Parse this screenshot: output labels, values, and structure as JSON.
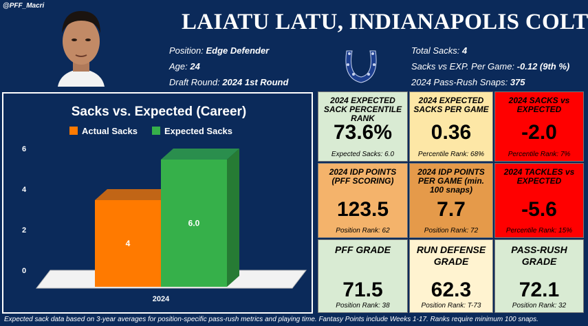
{
  "header": {
    "handle": "@PFF_Macri",
    "title": "LAIATU LATU, INDIANAPOLIS COLTS",
    "position_label": "Position:",
    "position_value": "Edge Defender",
    "age_label": "Age:",
    "age_value": "24",
    "draft_label": "Draft Round:",
    "draft_value": "2024 1st Round",
    "sacks_label": "Total Sacks:",
    "sacks_value": "4",
    "sacks_exp_label": "Sacks vs EXP. Per Game:",
    "sacks_exp_value": "-0.12 (9th %)",
    "snaps_label": "2024 Pass-Rush Snaps:",
    "snaps_value": "375"
  },
  "colors": {
    "background": "#0b2a5a",
    "actual": "#ff7a00",
    "expected": "#36b04a",
    "green_tile": "#d9ebd3",
    "yellow_tile": "#fde7a6",
    "orange_tile": "#f4b36b",
    "dark_orange_tile": "#e59a4a",
    "red_tile": "#ff0000",
    "cream_tile": "#fff3d0"
  },
  "chart_data": {
    "type": "bar",
    "title": "Sacks vs. Expected (Career)",
    "categories": [
      "2024"
    ],
    "series": [
      {
        "name": "Actual Sacks",
        "values": [
          4
        ],
        "data_labels": [
          "4"
        ]
      },
      {
        "name": "Expected Sacks",
        "values": [
          6.0
        ],
        "data_labels": [
          "6.0"
        ]
      }
    ],
    "yticks": [
      "0",
      "2",
      "4",
      "6"
    ],
    "ylim": [
      0,
      6
    ],
    "legend": "top"
  },
  "tiles": [
    {
      "label": "2024 EXPECTED SACK PERCENTILE RANK",
      "value": "73.6%",
      "sub": "Expected Sacks: 6.0",
      "color": "#d9ebd3"
    },
    {
      "label": "2024 EXPECTED SACKS PER GAME",
      "value": "0.36",
      "sub": "Percentile Rank: 68%",
      "color": "#fde7a6"
    },
    {
      "label": "2024 SACKS vs EXPECTED",
      "value": "-2.0",
      "sub": "Percentile Rank: 7%",
      "color": "#ff0000"
    },
    {
      "label": "2024 IDP POINTS (PFF SCORING)",
      "value": "123.5",
      "sub": "Position Rank: 62",
      "color": "#f4b36b"
    },
    {
      "label": "2024 IDP POINTS PER GAME (min. 100 snaps)",
      "value": "7.7",
      "sub": "Position Rank: 72",
      "color": "#e59a4a"
    },
    {
      "label": "2024 TACKLES vs EXPECTED",
      "value": "-5.6",
      "sub": "Percentile Rank: 15%",
      "color": "#ff0000"
    },
    {
      "label": "PFF GRADE",
      "value": "71.5",
      "sub": "Position Rank: 38",
      "color": "#d9ebd3"
    },
    {
      "label": "RUN DEFENSE GRADE",
      "value": "62.3",
      "sub": "Position Rank: T-73",
      "color": "#fff3d0"
    },
    {
      "label": "PASS-RUSH GRADE",
      "value": "72.1",
      "sub": "Position Rank: 32",
      "color": "#d9ebd3"
    }
  ],
  "footnote": "Expected sack data based on 3-year averages for position-specific pass-rush metrics and playing time. Fantasy Points include Weeks 1-17. Ranks require minimum 100 snaps."
}
